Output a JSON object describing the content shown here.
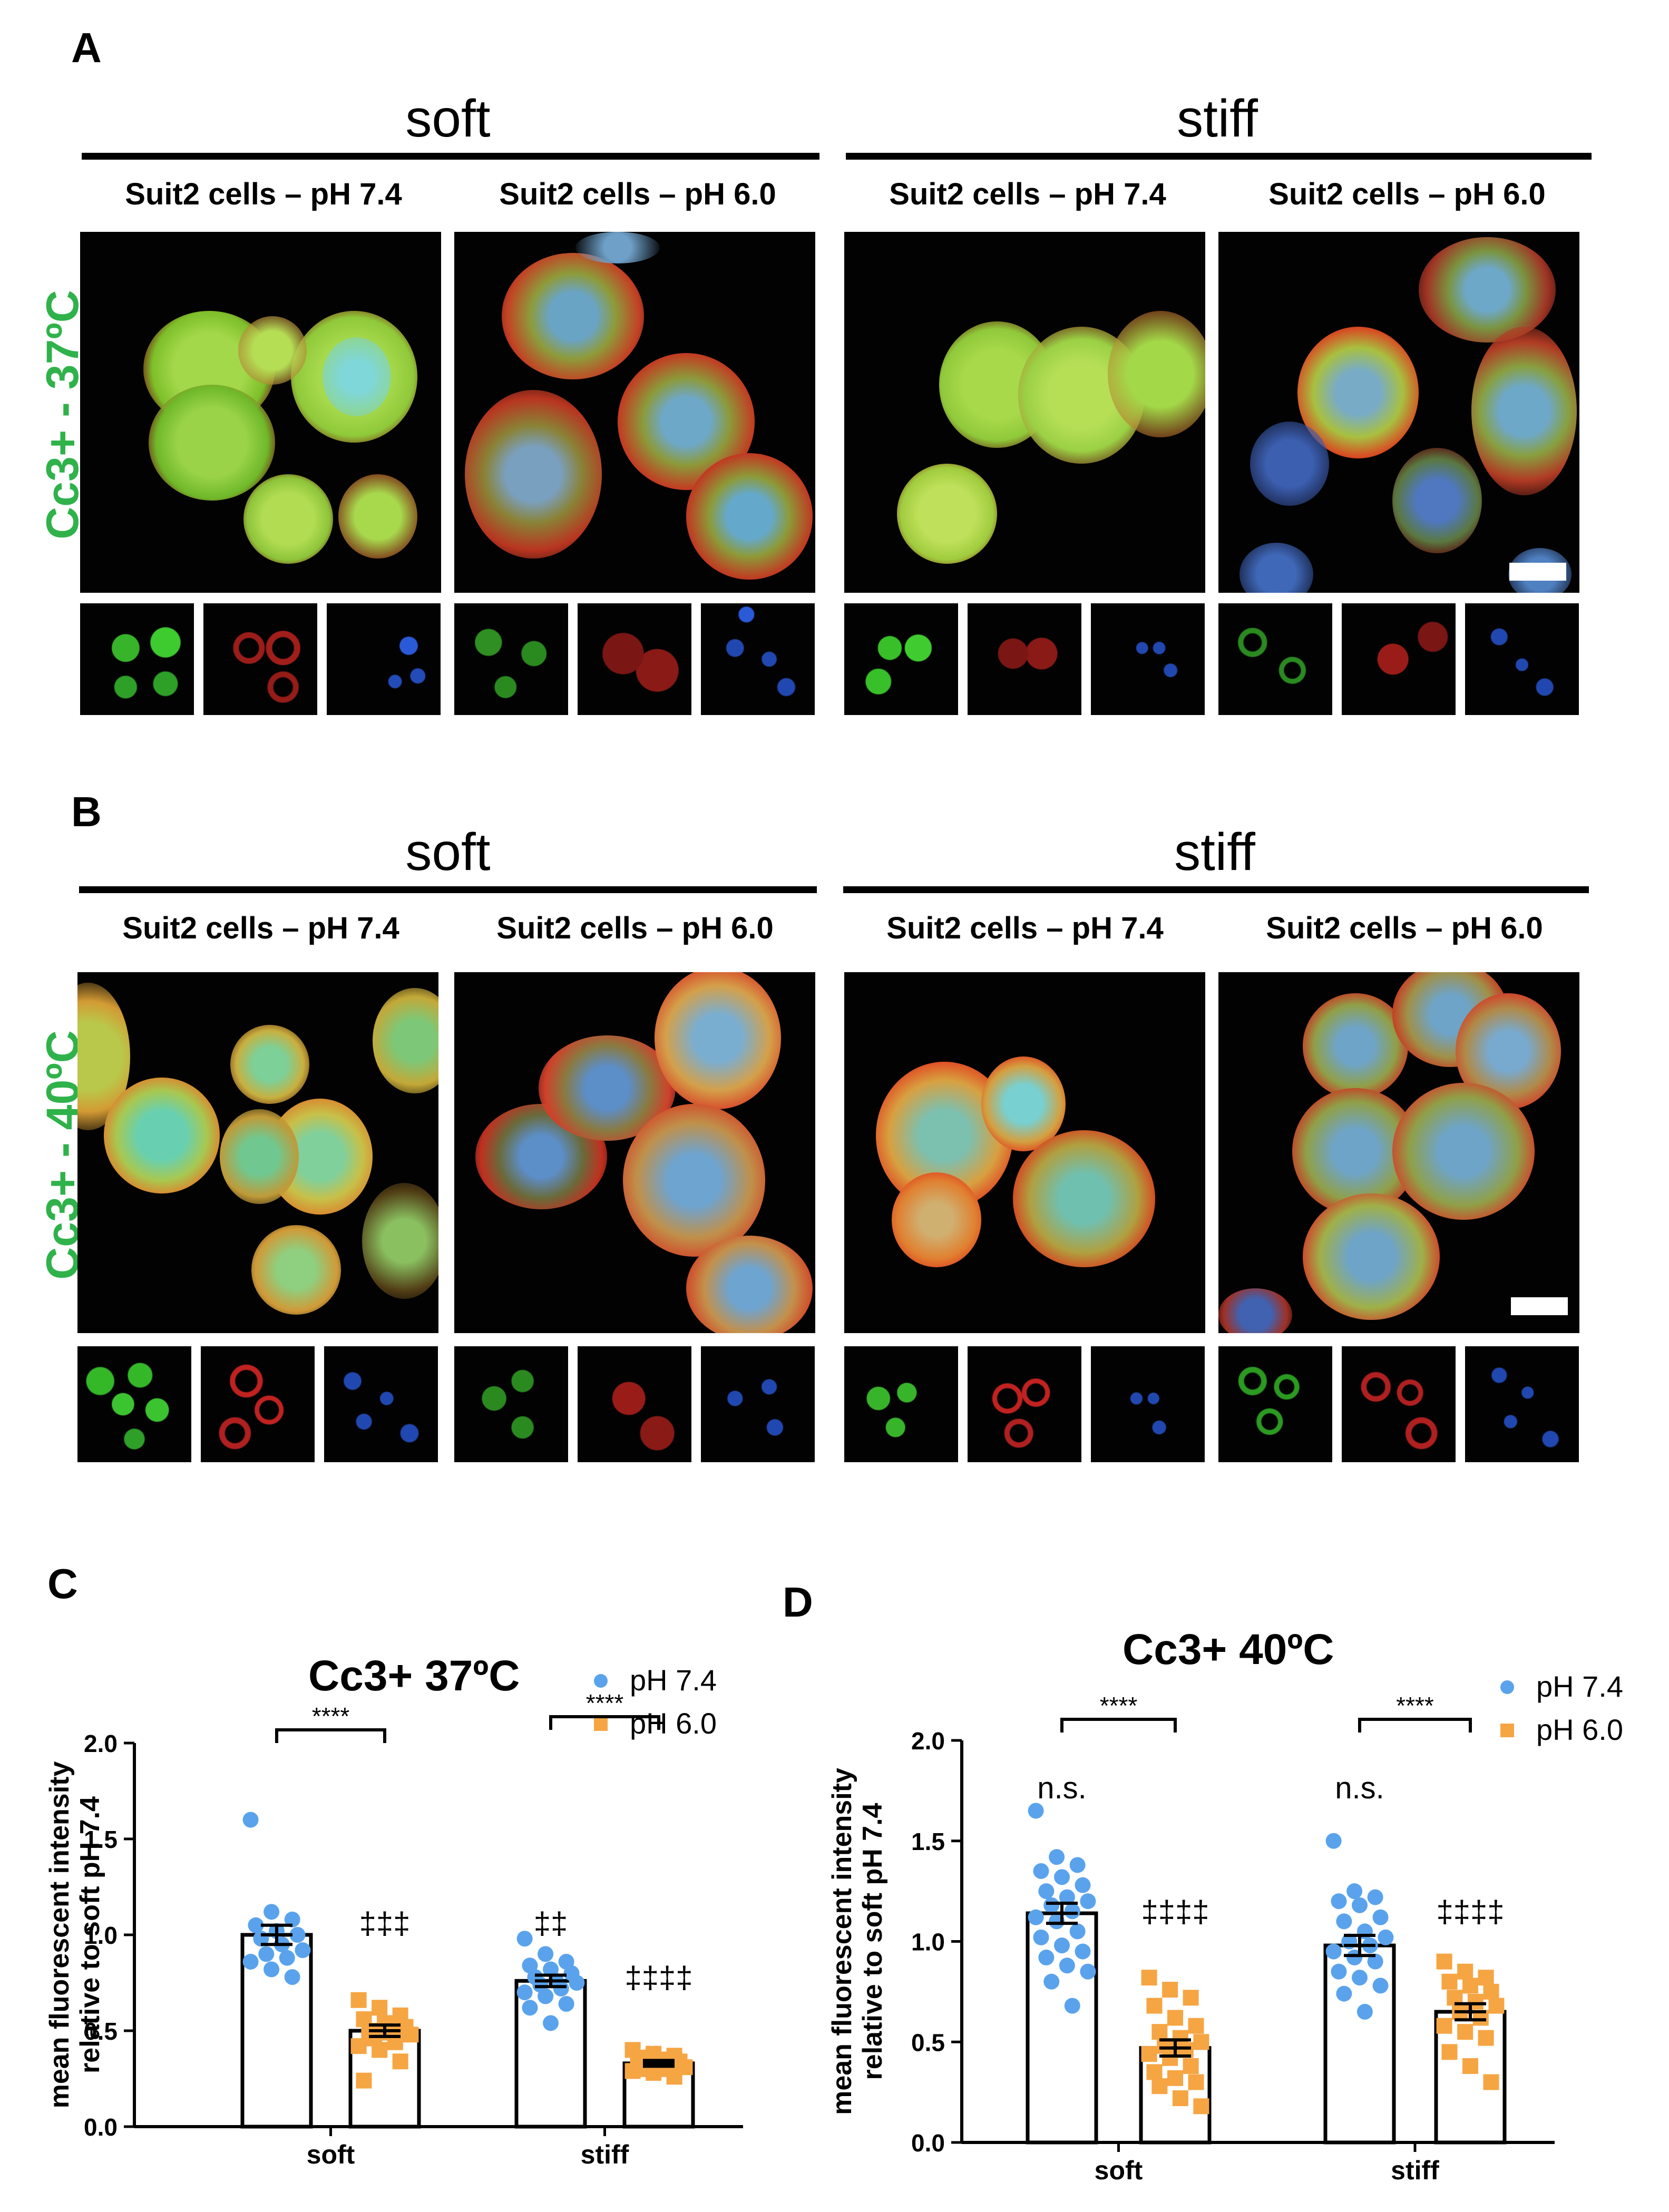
{
  "panelA": {
    "label": "A",
    "row_label": "Cc3+  -  37ºC",
    "conditions": [
      "soft",
      "stiff"
    ],
    "subtitles": [
      "Suit2 cells – pH 7.4",
      "Suit2 cells – pH 6.0",
      "Suit2 cells – pH 7.4",
      "Suit2 cells – pH 6.0"
    ]
  },
  "panelB": {
    "label": "B",
    "row_label": "Cc3+  -  40ºC",
    "conditions": [
      "soft",
      "stiff"
    ],
    "subtitles": [
      "Suit2 cells – pH 7.4",
      "Suit2 cells – pH 6.0",
      "Suit2 cells – pH 7.4",
      "Suit2 cells – pH 6.0"
    ]
  },
  "colors": {
    "green_label": "#2fb24a",
    "blue_points": "#5aa3ec",
    "orange_points": "#f6a543",
    "bar_fill": "#ffffff"
  },
  "chart_data": [
    {
      "panel": "C",
      "type": "bar",
      "title": "Cc3+   37ºC",
      "ylabel": "mean fluorescent intensity\nrelative to soft pH 7.4",
      "ylabel_lines": [
        "mean fluorescent intensity",
        "relative to soft pH 7.4"
      ],
      "categories": [
        "soft",
        "stiff"
      ],
      "ylim": [
        0,
        2.0
      ],
      "yticks": [
        "0.0",
        "0.5",
        "1.0",
        "1.5",
        "2.0"
      ],
      "legend": {
        "placement": "top-right",
        "entries": [
          "pH 7.4",
          "pH 6.0"
        ]
      },
      "series": [
        {
          "name": "pH 7.4",
          "values": [
            1.0,
            0.76
          ],
          "errors": [
            0.05,
            0.03
          ],
          "points": [
            [
              1.6,
              1.12,
              1.08,
              1.05,
              1.02,
              1.0,
              0.98,
              0.95,
              0.92,
              0.9,
              0.88,
              0.86,
              0.82,
              0.78
            ],
            [
              0.98,
              0.9,
              0.86,
              0.84,
              0.82,
              0.8,
              0.78,
              0.76,
              0.75,
              0.74,
              0.72,
              0.7,
              0.68,
              0.64,
              0.62,
              0.54
            ]
          ]
        },
        {
          "name": "pH 6.0",
          "values": [
            0.5,
            0.33
          ],
          "errors": [
            0.03,
            0.015
          ],
          "points": [
            [
              0.66,
              0.62,
              0.58,
              0.56,
              0.54,
              0.52,
              0.5,
              0.49,
              0.48,
              0.46,
              0.44,
              0.42,
              0.4,
              0.34,
              0.24
            ],
            [
              0.4,
              0.38,
              0.37,
              0.36,
              0.35,
              0.34,
              0.33,
              0.32,
              0.31,
              0.3,
              0.3,
              0.29,
              0.28,
              0.26
            ]
          ]
        }
      ],
      "annotations": {
        "brackets": [
          "****",
          "****"
        ],
        "soft_above_pH7": "",
        "soft_above_pH6": "‡‡‡",
        "stiff_above_pH7": "‡‡",
        "stiff_above_pH6": "‡‡‡‡"
      }
    },
    {
      "panel": "D",
      "type": "bar",
      "title": "Cc3+   40ºC",
      "ylabel_lines": [
        "mean fluorescent intensity",
        "relative to soft pH 7.4"
      ],
      "categories": [
        "soft",
        "stiff"
      ],
      "ylim": [
        0,
        2.0
      ],
      "yticks": [
        "0.0",
        "0.5",
        "1.0",
        "1.5",
        "2.0"
      ],
      "legend": {
        "placement": "top-right",
        "entries": [
          "pH 7.4",
          "pH 6.0"
        ]
      },
      "series": [
        {
          "name": "pH 7.4",
          "values": [
            1.14,
            0.98
          ],
          "errors": [
            0.05,
            0.05
          ],
          "points": [
            [
              1.65,
              1.42,
              1.38,
              1.35,
              1.32,
              1.28,
              1.25,
              1.22,
              1.2,
              1.18,
              1.15,
              1.12,
              1.1,
              1.05,
              1.02,
              0.98,
              0.95,
              0.92,
              0.88,
              0.85,
              0.8,
              0.68
            ],
            [
              1.5,
              1.25,
              1.22,
              1.2,
              1.18,
              1.12,
              1.1,
              1.05,
              1.02,
              1.0,
              0.98,
              0.95,
              0.92,
              0.9,
              0.85,
              0.82,
              0.78,
              0.74,
              0.65
            ]
          ]
        },
        {
          "name": "pH 6.0",
          "values": [
            0.47,
            0.65
          ],
          "errors": [
            0.04,
            0.04
          ],
          "points": [
            [
              0.82,
              0.76,
              0.72,
              0.68,
              0.62,
              0.58,
              0.55,
              0.52,
              0.5,
              0.48,
              0.46,
              0.44,
              0.42,
              0.38,
              0.35,
              0.32,
              0.3,
              0.28,
              0.22,
              0.18
            ],
            [
              0.9,
              0.85,
              0.82,
              0.8,
              0.78,
              0.75,
              0.72,
              0.7,
              0.68,
              0.65,
              0.62,
              0.58,
              0.55,
              0.52,
              0.45,
              0.38,
              0.3
            ]
          ]
        }
      ],
      "annotations": {
        "brackets": [
          "****",
          "****"
        ],
        "soft_above_pH7": "n.s.",
        "soft_above_pH6": "‡‡‡‡",
        "stiff_above_pH7": "n.s.",
        "stiff_above_pH6": "‡‡‡‡"
      }
    }
  ]
}
